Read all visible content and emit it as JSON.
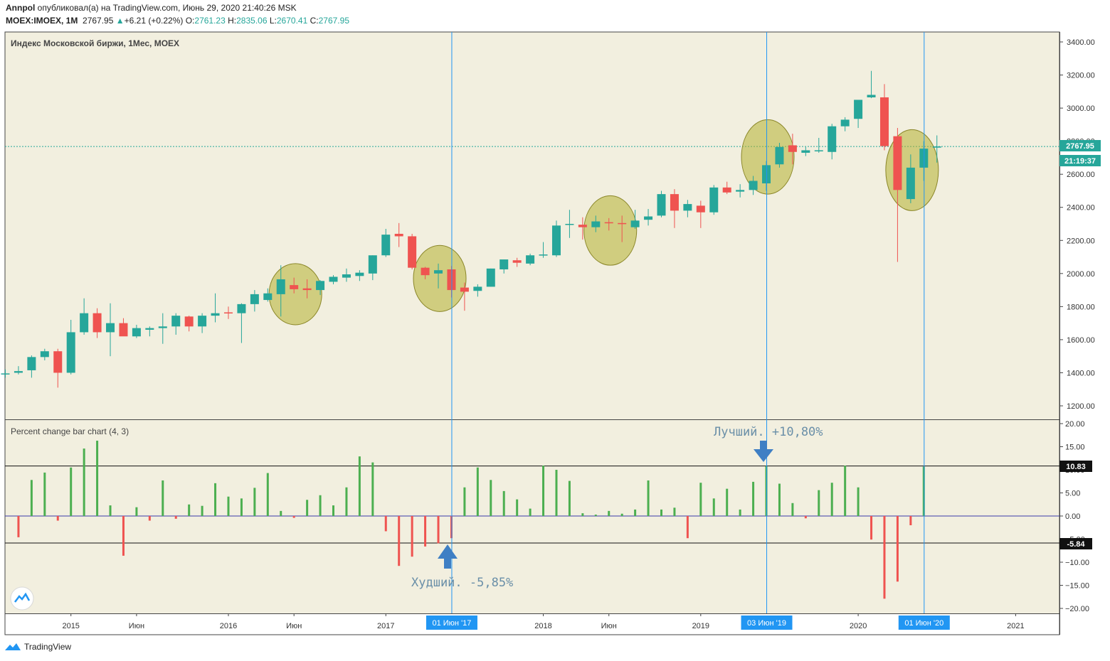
{
  "header": {
    "author": "Annpol",
    "published_text": "опубликовал(а) на TradingView.com, Июнь 29, 2020 21:40:26 MSK",
    "symbol": "MOEX:IMOEX, 1M",
    "last": "2767.95",
    "change": "+6.21 (+0.22%)",
    "o_label": "O:",
    "o": "2761.23",
    "h_label": "H:",
    "h": "2835.06",
    "l_label": "L:",
    "l": "2670.41",
    "c_label": "C:",
    "c": "2767.95"
  },
  "main_pane": {
    "title": "Индекс Московской биржи, 1Мес, MOEX",
    "price_label": "2767.95",
    "time_label": "21:19:37"
  },
  "indicator_pane": {
    "title": "Percent change bar chart (4, 3)",
    "best_label": "Лучший. +10,80%",
    "worst_label": "Худший. -5,85%",
    "best_level": "10.83",
    "worst_level": "-5.84"
  },
  "time_axis": {
    "labels": [
      "2015",
      "Июн",
      "2016",
      "Июн",
      "2017",
      "2018",
      "Июн",
      "2019",
      "2020",
      "2021"
    ],
    "markers": [
      "01 Июн '17",
      "03 Июн '19",
      "01 Июн '20"
    ]
  },
  "footer": {
    "brand": "TradingView"
  },
  "colors": {
    "up": "#26a69a",
    "down": "#ef5350",
    "bg": "#f2efdf",
    "bar_up": "#4caf50",
    "bar_down": "#ef5350",
    "marker": "#2196f3",
    "highlight": "#b5b02f"
  },
  "chart_data": [
    {
      "type": "candlestick",
      "title": "Индекс Московской биржи, 1Мес, MOEX",
      "y_ticks": [
        1200,
        1400,
        1600,
        1800,
        2000,
        2200,
        2400,
        2600,
        2800,
        3000,
        3200,
        3400
      ],
      "ylim": [
        1110,
        3470
      ],
      "x_labels": [
        "2015",
        "Июн",
        "2016",
        "Июн",
        "2017",
        "2018",
        "Июн",
        "2019",
        "2020",
        "2021"
      ],
      "highlighted_months": [
        "2016-06",
        "2017-05",
        "2018-06",
        "2019-06",
        "2020-06"
      ],
      "candles": [
        {
          "t": "2014-08",
          "o": 1390,
          "h": 1420,
          "l": 1370,
          "c": 1396
        },
        {
          "t": "2014-09",
          "o": 1400,
          "h": 1440,
          "l": 1390,
          "c": 1410
        },
        {
          "t": "2014-10",
          "o": 1415,
          "h": 1505,
          "l": 1370,
          "c": 1495
        },
        {
          "t": "2014-11",
          "o": 1495,
          "h": 1545,
          "l": 1475,
          "c": 1530
        },
        {
          "t": "2014-12",
          "o": 1530,
          "h": 1545,
          "l": 1310,
          "c": 1400
        },
        {
          "t": "2015-01",
          "o": 1400,
          "h": 1720,
          "l": 1390,
          "c": 1645
        },
        {
          "t": "2015-02",
          "o": 1645,
          "h": 1850,
          "l": 1630,
          "c": 1760
        },
        {
          "t": "2015-03",
          "o": 1760,
          "h": 1790,
          "l": 1610,
          "c": 1645
        },
        {
          "t": "2015-04",
          "o": 1645,
          "h": 1820,
          "l": 1500,
          "c": 1700
        },
        {
          "t": "2015-05",
          "o": 1700,
          "h": 1730,
          "l": 1625,
          "c": 1620
        },
        {
          "t": "2015-06",
          "o": 1620,
          "h": 1690,
          "l": 1610,
          "c": 1670
        },
        {
          "t": "2015-07",
          "o": 1660,
          "h": 1680,
          "l": 1620,
          "c": 1670
        },
        {
          "t": "2015-08",
          "o": 1670,
          "h": 1760,
          "l": 1575,
          "c": 1680
        },
        {
          "t": "2015-09",
          "o": 1680,
          "h": 1760,
          "l": 1630,
          "c": 1745
        },
        {
          "t": "2015-10",
          "o": 1740,
          "h": 1745,
          "l": 1650,
          "c": 1680
        },
        {
          "t": "2015-11",
          "o": 1680,
          "h": 1760,
          "l": 1640,
          "c": 1745
        },
        {
          "t": "2015-12",
          "o": 1745,
          "h": 1880,
          "l": 1705,
          "c": 1760
        },
        {
          "t": "2016-01",
          "o": 1765,
          "h": 1800,
          "l": 1725,
          "c": 1760
        },
        {
          "t": "2016-02",
          "o": 1760,
          "h": 1820,
          "l": 1580,
          "c": 1815
        },
        {
          "t": "2016-03",
          "o": 1815,
          "h": 1900,
          "l": 1770,
          "c": 1875
        },
        {
          "t": "2016-04",
          "o": 1840,
          "h": 1910,
          "l": 1830,
          "c": 1880
        },
        {
          "t": "2016-05",
          "o": 1875,
          "h": 2050,
          "l": 1740,
          "c": 1965
        },
        {
          "t": "2016-06",
          "o": 1930,
          "h": 1975,
          "l": 1880,
          "c": 1905
        },
        {
          "t": "2016-07",
          "o": 1910,
          "h": 1965,
          "l": 1850,
          "c": 1900
        },
        {
          "t": "2016-08",
          "o": 1900,
          "h": 1960,
          "l": 1870,
          "c": 1955
        },
        {
          "t": "2016-09",
          "o": 1950,
          "h": 1990,
          "l": 1935,
          "c": 1980
        },
        {
          "t": "2016-10",
          "o": 1975,
          "h": 2030,
          "l": 1950,
          "c": 1995
        },
        {
          "t": "2016-11",
          "o": 1985,
          "h": 2020,
          "l": 1955,
          "c": 2005
        },
        {
          "t": "2016-12",
          "o": 2000,
          "h": 2110,
          "l": 1960,
          "c": 2110
        },
        {
          "t": "2017-01",
          "o": 2110,
          "h": 2270,
          "l": 2100,
          "c": 2235
        },
        {
          "t": "2017-02",
          "o": 2240,
          "h": 2305,
          "l": 2160,
          "c": 2225
        },
        {
          "t": "2017-03",
          "o": 2225,
          "h": 2240,
          "l": 2025,
          "c": 2035
        },
        {
          "t": "2017-04",
          "o": 2035,
          "h": 2040,
          "l": 1965,
          "c": 1990
        },
        {
          "t": "2017-05",
          "o": 2000,
          "h": 2060,
          "l": 1910,
          "c": 2020
        },
        {
          "t": "2017-06",
          "o": 2025,
          "h": 2045,
          "l": 1855,
          "c": 1900
        },
        {
          "t": "2017-07",
          "o": 1915,
          "h": 1945,
          "l": 1775,
          "c": 1890
        },
        {
          "t": "2017-08",
          "o": 1895,
          "h": 1935,
          "l": 1860,
          "c": 1920
        },
        {
          "t": "2017-09",
          "o": 1920,
          "h": 2030,
          "l": 1920,
          "c": 2030
        },
        {
          "t": "2017-10",
          "o": 2025,
          "h": 2085,
          "l": 2000,
          "c": 2085
        },
        {
          "t": "2017-11",
          "o": 2080,
          "h": 2095,
          "l": 2040,
          "c": 2065
        },
        {
          "t": "2017-12",
          "o": 2060,
          "h": 2120,
          "l": 2050,
          "c": 2110
        },
        {
          "t": "2018-01",
          "o": 2110,
          "h": 2190,
          "l": 2095,
          "c": 2115
        },
        {
          "t": "2018-02",
          "o": 2110,
          "h": 2320,
          "l": 2100,
          "c": 2290
        },
        {
          "t": "2018-03",
          "o": 2295,
          "h": 2385,
          "l": 2215,
          "c": 2300
        },
        {
          "t": "2018-04",
          "o": 2295,
          "h": 2340,
          "l": 2205,
          "c": 2280
        },
        {
          "t": "2018-05",
          "o": 2280,
          "h": 2350,
          "l": 2250,
          "c": 2315
        },
        {
          "t": "2018-06",
          "o": 2310,
          "h": 2335,
          "l": 2260,
          "c": 2305
        },
        {
          "t": "2018-07",
          "o": 2305,
          "h": 2350,
          "l": 2190,
          "c": 2300
        },
        {
          "t": "2018-08",
          "o": 2280,
          "h": 2385,
          "l": 2270,
          "c": 2320
        },
        {
          "t": "2018-09",
          "o": 2325,
          "h": 2390,
          "l": 2290,
          "c": 2345
        },
        {
          "t": "2018-10",
          "o": 2350,
          "h": 2500,
          "l": 2340,
          "c": 2480
        },
        {
          "t": "2018-11",
          "o": 2480,
          "h": 2510,
          "l": 2275,
          "c": 2380
        },
        {
          "t": "2018-12",
          "o": 2380,
          "h": 2445,
          "l": 2340,
          "c": 2420
        },
        {
          "t": "2019-01",
          "o": 2410,
          "h": 2440,
          "l": 2275,
          "c": 2370
        },
        {
          "t": "2019-02",
          "o": 2370,
          "h": 2535,
          "l": 2355,
          "c": 2520
        },
        {
          "t": "2019-03",
          "o": 2520,
          "h": 2555,
          "l": 2480,
          "c": 2490
        },
        {
          "t": "2019-04",
          "o": 2495,
          "h": 2540,
          "l": 2460,
          "c": 2505
        },
        {
          "t": "2019-05",
          "o": 2505,
          "h": 2590,
          "l": 2475,
          "c": 2560
        },
        {
          "t": "2019-06",
          "o": 2545,
          "h": 2680,
          "l": 2500,
          "c": 2655
        },
        {
          "t": "2019-07",
          "o": 2660,
          "h": 2790,
          "l": 2640,
          "c": 2765
        },
        {
          "t": "2019-08",
          "o": 2775,
          "h": 2845,
          "l": 2660,
          "c": 2735
        },
        {
          "t": "2019-09",
          "o": 2730,
          "h": 2765,
          "l": 2710,
          "c": 2745
        },
        {
          "t": "2019-10",
          "o": 2740,
          "h": 2820,
          "l": 2730,
          "c": 2745
        },
        {
          "t": "2019-11",
          "o": 2735,
          "h": 2905,
          "l": 2690,
          "c": 2890
        },
        {
          "t": "2019-12",
          "o": 2890,
          "h": 2945,
          "l": 2860,
          "c": 2930
        },
        {
          "t": "2020-01",
          "o": 2935,
          "h": 3040,
          "l": 2880,
          "c": 3050
        },
        {
          "t": "2020-02",
          "o": 3065,
          "h": 3225,
          "l": 3060,
          "c": 3080
        },
        {
          "t": "2020-03",
          "o": 3065,
          "h": 3145,
          "l": 2745,
          "c": 2770
        },
        {
          "t": "2020-04",
          "o": 2830,
          "h": 2880,
          "l": 2070,
          "c": 2505
        },
        {
          "t": "2020-05",
          "o": 2450,
          "h": 2720,
          "l": 2425,
          "c": 2640
        },
        {
          "t": "2020-06",
          "o": 2640,
          "h": 2800,
          "l": 2560,
          "c": 2755
        },
        {
          "t": "2020-07",
          "o": 2761.23,
          "h": 2835.06,
          "l": 2670.41,
          "c": 2767.95
        }
      ]
    },
    {
      "type": "bar",
      "title": "Percent change bar chart (4, 3)",
      "y_ticks": [
        20,
        15,
        10,
        5,
        0,
        -5,
        -10,
        -15,
        -20
      ],
      "ylim": [
        -21,
        21
      ],
      "levels": [
        10.83,
        -5.84
      ],
      "values": [
        -4.6,
        7.8,
        9.4,
        -1,
        10.5,
        14.6,
        16.3,
        2.3,
        -8.6,
        1.9,
        -1,
        7.7,
        -0.6,
        2.5,
        2.2,
        7.1,
        4.2,
        3.8,
        6.1,
        9.3,
        1.1,
        -0.4,
        3.5,
        4.5,
        2.3,
        6.2,
        12.9,
        11.6,
        -3.3,
        -10.8,
        -8.8,
        -6.6,
        -5.9,
        -4.8,
        6.2,
        10.5,
        7.8,
        5.4,
        3.6,
        1.6,
        10.9,
        10,
        7.6,
        0.6,
        0.3,
        1.1,
        0.5,
        1.4,
        7.7,
        1.4,
        1.8,
        -4.8,
        7.2,
        3.8,
        5.9,
        1.4,
        7.4,
        10.8,
        7,
        2.8,
        -0.5,
        5.6,
        7.2,
        10.9,
        6.2,
        -5.1,
        -17.9,
        -14.2,
        -2,
        10.7
      ]
    }
  ]
}
